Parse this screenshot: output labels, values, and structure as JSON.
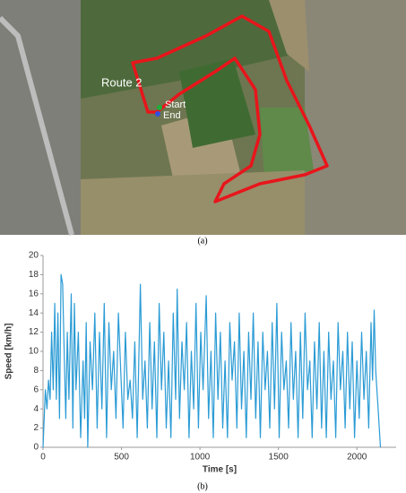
{
  "map": {
    "labels": {
      "route": "Route 2",
      "start": "Start",
      "end": "End"
    },
    "caption": "(a)"
  },
  "chart_data": {
    "type": "line",
    "caption": "(b)",
    "xlabel": "Time [s]",
    "ylabel": "Speed [km/h]",
    "xlim": [
      0,
      2250
    ],
    "xticks": [
      0,
      500,
      1000,
      1500,
      2000
    ],
    "ylim": [
      0,
      20
    ],
    "yticks": [
      0,
      2,
      4,
      6,
      8,
      10,
      12,
      14,
      16,
      18,
      20
    ],
    "grid": false,
    "series": [
      {
        "color": "#2a9bd5",
        "x": [
          0,
          15,
          25,
          35,
          45,
          55,
          65,
          75,
          85,
          95,
          105,
          115,
          125,
          135,
          145,
          155,
          165,
          180,
          190,
          200,
          210,
          225,
          240,
          255,
          265,
          275,
          285,
          300,
          315,
          330,
          345,
          360,
          375,
          390,
          405,
          420,
          435,
          450,
          465,
          480,
          495,
          510,
          525,
          540,
          555,
          570,
          585,
          600,
          620,
          635,
          650,
          665,
          680,
          695,
          710,
          725,
          740,
          755,
          770,
          785,
          800,
          815,
          830,
          845,
          855,
          870,
          885,
          900,
          915,
          930,
          945,
          960,
          975,
          990,
          1005,
          1020,
          1040,
          1055,
          1070,
          1085,
          1100,
          1115,
          1130,
          1145,
          1160,
          1175,
          1190,
          1205,
          1220,
          1235,
          1250,
          1265,
          1280,
          1295,
          1310,
          1325,
          1340,
          1355,
          1370,
          1385,
          1400,
          1415,
          1430,
          1445,
          1460,
          1475,
          1490,
          1505,
          1520,
          1535,
          1550,
          1565,
          1580,
          1595,
          1610,
          1625,
          1640,
          1655,
          1670,
          1685,
          1700,
          1715,
          1730,
          1745,
          1760,
          1775,
          1790,
          1805,
          1820,
          1835,
          1850,
          1865,
          1880,
          1895,
          1910,
          1925,
          1940,
          1955,
          1970,
          1985,
          2000,
          2015,
          2030,
          2045,
          2060,
          2075,
          2090,
          2100,
          2110,
          2120,
          2135,
          2150
        ],
        "values": [
          0,
          6,
          4,
          7,
          5,
          12,
          6,
          15,
          5,
          14,
          3,
          18,
          17,
          10,
          3,
          12,
          5,
          16,
          2,
          15,
          6,
          12,
          1,
          9,
          3,
          13,
          0,
          11,
          6,
          14,
          2,
          12,
          4,
          15,
          1,
          13,
          6,
          10,
          3,
          14,
          8,
          2,
          12,
          5,
          7,
          3,
          11,
          1,
          17,
          5,
          9,
          2,
          13,
          4,
          11,
          1,
          15,
          6,
          12,
          2,
          9,
          1,
          14,
          5,
          16.5,
          3,
          11,
          6,
          13,
          1,
          10,
          4,
          15,
          2,
          12,
          6,
          15.8,
          3,
          10,
          1,
          14,
          5,
          12,
          2,
          9,
          1,
          13,
          7,
          11,
          2,
          14,
          4,
          10,
          1,
          12,
          5,
          14,
          3,
          11,
          1,
          12,
          6,
          10,
          2,
          13,
          4,
          15,
          1,
          12,
          6,
          9,
          2,
          13,
          5,
          10,
          1,
          12,
          3,
          14,
          6,
          9,
          1,
          11,
          4,
          13,
          2,
          10,
          1,
          12,
          5,
          9,
          1,
          13,
          6,
          10,
          2,
          12,
          4,
          11,
          1,
          9,
          3,
          12,
          5,
          10,
          2,
          13,
          7,
          14.3,
          8,
          4,
          0
        ]
      }
    ]
  }
}
